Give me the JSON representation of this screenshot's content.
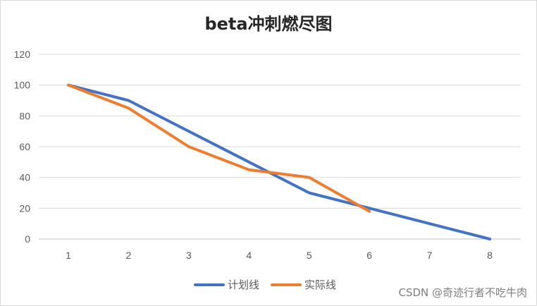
{
  "chart_data": {
    "type": "line",
    "title": "beta冲刺燃尽图",
    "x": [
      1,
      2,
      3,
      4,
      5,
      6,
      7,
      8
    ],
    "categories": [
      "1",
      "2",
      "3",
      "4",
      "5",
      "6",
      "7",
      "8"
    ],
    "yticks": [
      0,
      20,
      40,
      60,
      80,
      100,
      120
    ],
    "ylim": [
      0,
      120
    ],
    "xlabel": "",
    "ylabel": "",
    "grid": true,
    "legend_position": "bottom",
    "series": [
      {
        "name": "计划线",
        "color": "#4472c4",
        "x": [
          1,
          2,
          3,
          4,
          5,
          6,
          7,
          8
        ],
        "values": [
          100,
          90,
          70,
          50,
          30,
          20,
          10,
          0
        ]
      },
      {
        "name": "实际线",
        "color": "#ed7d31",
        "x": [
          1,
          2,
          3,
          4,
          5,
          6
        ],
        "values": [
          100,
          85,
          60,
          45,
          40,
          18
        ]
      }
    ]
  },
  "watermark": "CSDN @奇迹行者不吃牛肉"
}
